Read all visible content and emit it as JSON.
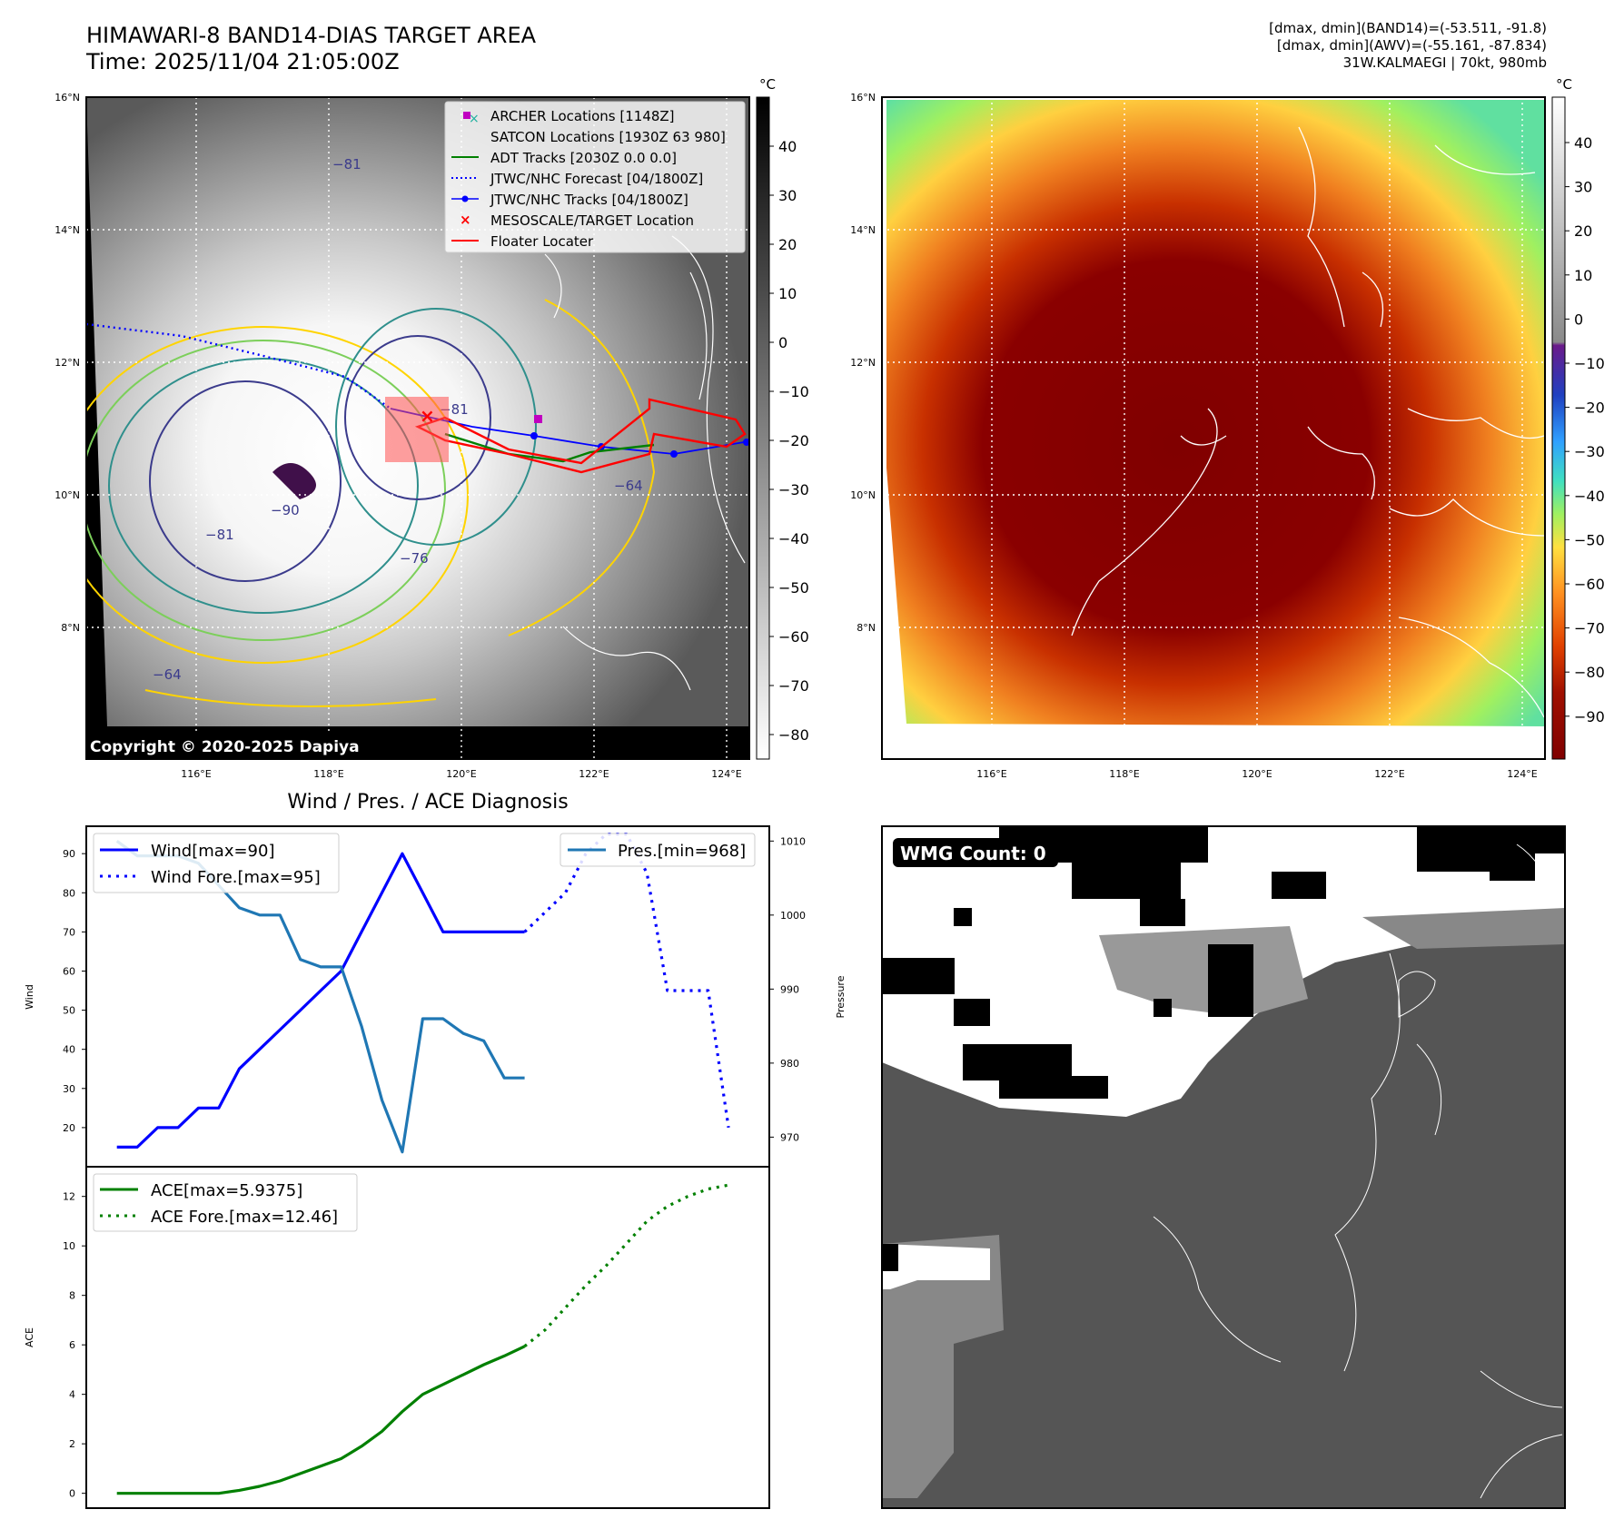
{
  "header": {
    "title_line1": "HIMAWARI-8 BAND14-DIAS TARGET AREA",
    "title_line2": "Time: 2025/11/04 21:05:00Z",
    "stats_line1": "[dmax, dmin](BAND14)=(-53.511, -91.8)",
    "stats_line2": "[dmax, dmin](AWV)=(-55.161, -87.834)",
    "stats_line3": "31W.KALMAEGI | 70kt, 980mb"
  },
  "map_axes": {
    "lat_ticks": [
      "16°N",
      "14°N",
      "12°N",
      "10°N",
      "8°N"
    ],
    "lon_ticks": [
      "116°E",
      "118°E",
      "120°E",
      "122°E",
      "124°E"
    ]
  },
  "ir_panel": {
    "copyright": "Copyright © 2020-2025 Dapiya",
    "colorbar_unit": "°C",
    "colorbar_ticks": [
      "40",
      "30",
      "20",
      "10",
      "0",
      "−10",
      "−20",
      "−30",
      "−40",
      "−50",
      "−60",
      "−70",
      "−80"
    ],
    "contour_labels": [
      "−90",
      "−81",
      "−81",
      "−76",
      "−64",
      "−64",
      "−81"
    ],
    "legend": [
      {
        "label": "ARCHER Locations [1148Z]",
        "color": "#c000c0"
      },
      {
        "label": "SATCON Locations [1930Z 63 980]",
        "color": "#20b0a0"
      },
      {
        "label": "ADT Tracks [2030Z 0.0 0.0]",
        "color": "#008000"
      },
      {
        "label": "JTWC/NHC Forecast [04/1800Z]",
        "color": "#0000ff"
      },
      {
        "label": "JTWC/NHC Tracks [04/1800Z]",
        "color": "#0000ff"
      },
      {
        "label": "MESOSCALE/TARGET Location",
        "color": "#ff0000"
      },
      {
        "label": "Floater Locater",
        "color": "#ff0000"
      }
    ]
  },
  "wv_panel": {
    "colorbar_unit": "°C",
    "colorbar_ticks": [
      "40",
      "30",
      "20",
      "10",
      "0",
      "−10",
      "−20",
      "−30",
      "−40",
      "−50",
      "−60",
      "−70",
      "−80",
      "−90"
    ]
  },
  "wmg_panel": {
    "label": "WMG Count: 0"
  },
  "chart_data": [
    {
      "type": "line",
      "title": "Wind / Pres. / ACE Diagnosis",
      "ylabel": "Wind",
      "ylabel_right": "Pressure",
      "ylim": [
        10,
        97
      ],
      "ylim_right": [
        966,
        1012
      ],
      "yticks": [
        20,
        30,
        40,
        50,
        60,
        70,
        80,
        90
      ],
      "yticks_right": [
        970,
        980,
        990,
        1000,
        1010
      ],
      "x": [
        0,
        1,
        2,
        3,
        4,
        5,
        6,
        7,
        8,
        9,
        10,
        11,
        12,
        13,
        14,
        15,
        16,
        17,
        18,
        19,
        20,
        21,
        22,
        23,
        24,
        25,
        26,
        27,
        28,
        29,
        30
      ],
      "xlim": [
        -1.5,
        32
      ],
      "series": [
        {
          "name": "Wind[max=90]",
          "axis": "left",
          "style": "solid",
          "color": "#0000ff",
          "x": [
            0,
            1,
            2,
            3,
            4,
            5,
            6,
            7,
            8,
            9,
            10,
            11,
            12,
            13,
            14,
            15,
            16,
            17,
            18,
            19,
            20
          ],
          "values": [
            15,
            15,
            20,
            20,
            25,
            25,
            35,
            40,
            45,
            50,
            55,
            60,
            70,
            80,
            90,
            80,
            70,
            70,
            70,
            70,
            70
          ]
        },
        {
          "name": "Wind Fore.[max=95]",
          "axis": "left",
          "style": "dotted",
          "color": "#0000ff",
          "x": [
            20,
            21,
            22,
            23,
            24,
            25,
            26,
            27,
            28,
            29,
            30
          ],
          "values": [
            70,
            75,
            80,
            90,
            95,
            95,
            85,
            55,
            55,
            55,
            20
          ]
        },
        {
          "name": "Pres.[min=968]",
          "axis": "right",
          "style": "solid",
          "color": "#1f77b4",
          "x": [
            0,
            1,
            2,
            3,
            4,
            5,
            6,
            7,
            8,
            9,
            10,
            11,
            12,
            13,
            14,
            15,
            16,
            17,
            18,
            19,
            20
          ],
          "values": [
            1010,
            1008,
            1008,
            1008,
            1007,
            1004,
            1001,
            1000,
            1000,
            994,
            993,
            993,
            985,
            975,
            968,
            986,
            986,
            984,
            983,
            978,
            978
          ]
        }
      ]
    },
    {
      "type": "line",
      "ylabel": "ACE",
      "ylim": [
        -0.6,
        13.2
      ],
      "yticks": [
        0,
        2,
        4,
        6,
        8,
        10,
        12
      ],
      "xlim": [
        -1.5,
        32
      ],
      "series": [
        {
          "name": "ACE[max=5.9375]",
          "style": "solid",
          "color": "#008000",
          "x": [
            0,
            1,
            2,
            3,
            4,
            5,
            6,
            7,
            8,
            9,
            10,
            11,
            12,
            13,
            14,
            15,
            16,
            17,
            18,
            19,
            20
          ],
          "values": [
            0,
            0,
            0,
            0,
            0,
            0,
            0.12,
            0.28,
            0.5,
            0.8,
            1.1,
            1.4,
            1.9,
            2.5,
            3.3,
            4.0,
            4.4,
            4.8,
            5.2,
            5.55,
            5.94
          ]
        },
        {
          "name": "ACE Fore.[max=12.46]",
          "style": "dotted",
          "color": "#008000",
          "x": [
            20,
            21,
            22,
            23,
            24,
            25,
            26,
            27,
            28,
            29,
            30
          ],
          "values": [
            5.94,
            6.6,
            7.5,
            8.4,
            9.2,
            10.1,
            11.0,
            11.6,
            12.0,
            12.3,
            12.46
          ]
        }
      ]
    }
  ]
}
